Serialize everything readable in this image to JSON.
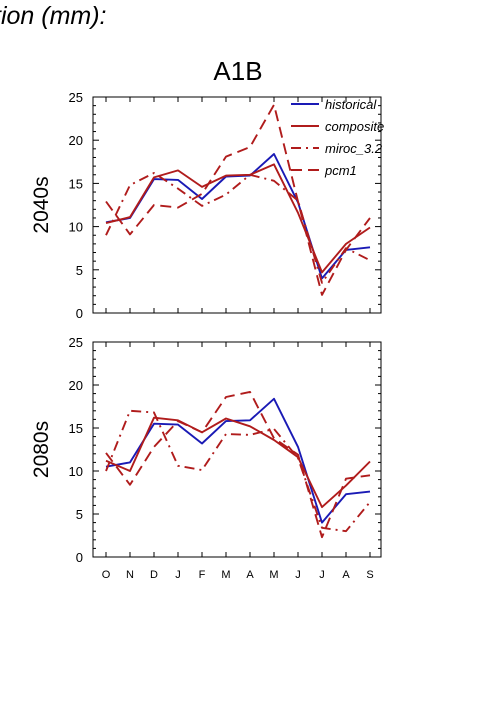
{
  "header": {
    "title": "tion (mm):",
    "scenario": "A1B"
  },
  "colors": {
    "historical": "#1a1ab5",
    "model": "#b01c1c",
    "axis": "#000000"
  },
  "chart_data": {
    "type": "line",
    "categories": [
      "O",
      "N",
      "D",
      "J",
      "F",
      "M",
      "A",
      "M",
      "J",
      "J",
      "A",
      "S"
    ],
    "ylim": [
      0,
      25
    ],
    "yticks": [
      "0",
      "5",
      "10",
      "15",
      "20",
      "25"
    ],
    "legend": {
      "placement": "top-right",
      "entries": [
        "historical",
        "composite",
        "miroc_3.2",
        "pcm1"
      ]
    },
    "panels": [
      {
        "label": "2040s",
        "series": [
          {
            "name": "historical",
            "style": "solid",
            "color": "#1a1ab5",
            "values": [
              10.5,
              11.0,
              15.5,
              15.4,
              13.2,
              15.8,
              15.9,
              18.4,
              12.8,
              4.0,
              7.3,
              7.6
            ]
          },
          {
            "name": "composite",
            "style": "solid",
            "color": "#b01c1c",
            "values": [
              10.4,
              11.1,
              15.7,
              16.5,
              14.6,
              15.9,
              16.0,
              17.2,
              11.6,
              4.7,
              8.0,
              9.9
            ]
          },
          {
            "name": "miroc_3.2",
            "style": "dashdot",
            "color": "#b01c1c",
            "values": [
              9.0,
              14.8,
              16.2,
              14.4,
              12.4,
              13.7,
              16.0,
              15.3,
              13.0,
              3.5,
              7.5,
              6.1
            ]
          },
          {
            "name": "pcm1",
            "style": "dashed",
            "color": "#b01c1c",
            "values": [
              12.9,
              9.1,
              12.5,
              12.2,
              13.8,
              18.1,
              19.2,
              24.1,
              12.9,
              2.1,
              7.3,
              11.0
            ]
          }
        ]
      },
      {
        "label": "2080s",
        "series": [
          {
            "name": "historical",
            "style": "solid",
            "color": "#1a1ab5",
            "values": [
              10.5,
              11.0,
              15.5,
              15.4,
              13.2,
              15.8,
              15.9,
              18.4,
              12.8,
              4.0,
              7.3,
              7.6
            ]
          },
          {
            "name": "composite",
            "style": "solid",
            "color": "#b01c1c",
            "values": [
              11.2,
              10.0,
              16.2,
              15.9,
              14.5,
              16.1,
              15.2,
              13.6,
              11.6,
              5.8,
              8.3,
              11.1
            ]
          },
          {
            "name": "miroc_3.2",
            "style": "dashdot",
            "color": "#b01c1c",
            "values": [
              10.0,
              17.0,
              16.8,
              10.6,
              10.1,
              14.3,
              14.2,
              14.9,
              11.5,
              3.4,
              3.0,
              6.4
            ]
          },
          {
            "name": "pcm1",
            "style": "dashed",
            "color": "#b01c1c",
            "values": [
              12.1,
              8.4,
              12.8,
              15.8,
              14.5,
              18.6,
              19.2,
              13.8,
              11.9,
              2.3,
              9.1,
              9.5
            ]
          }
        ]
      }
    ]
  }
}
